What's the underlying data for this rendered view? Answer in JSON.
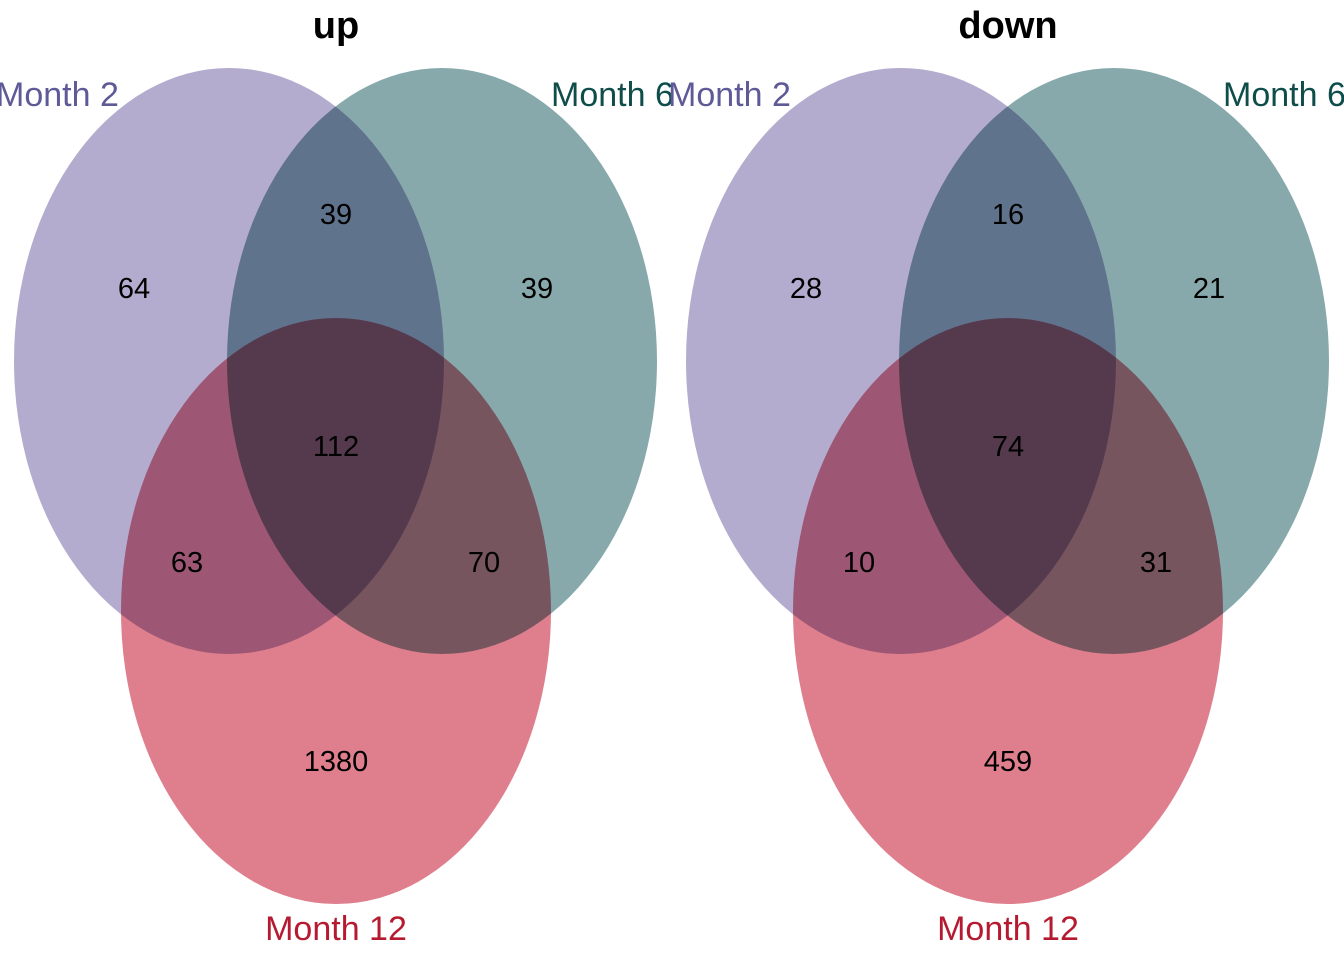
{
  "colors": {
    "set_a": "#8f84b8",
    "set_b": "#4f8085",
    "set_c": "#d34e61",
    "label_a": "#5e5a97",
    "label_b": "#0f4d4b",
    "label_c": "#b51a31"
  },
  "diagrams": [
    {
      "title": "up",
      "sets": [
        "Month 2",
        "Month 6",
        "Month 12"
      ],
      "counts": {
        "a_only": "64",
        "b_only": "39",
        "c_only": "1380",
        "ab": "39",
        "ac": "63",
        "bc": "70",
        "abc": "112"
      }
    },
    {
      "title": "down",
      "sets": [
        "Month 2",
        "Month 6",
        "Month 12"
      ],
      "counts": {
        "a_only": "28",
        "b_only": "21",
        "c_only": "459",
        "ab": "16",
        "ac": "10",
        "bc": "31",
        "abc": "74"
      }
    }
  ]
}
